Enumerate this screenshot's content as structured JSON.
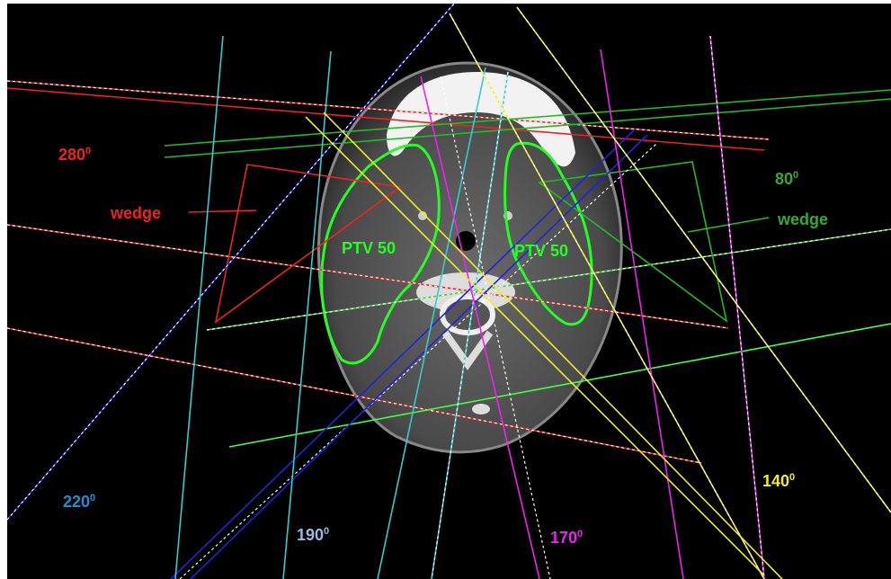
{
  "labels": [
    {
      "text": "280",
      "sup": "0"
    },
    {
      "text": "wedge"
    },
    {
      "text": "80",
      "sup": "0"
    },
    {
      "text": "wedge"
    },
    {
      "text": "PTV 50"
    },
    {
      "text": "PTV 50"
    },
    {
      "text": "220",
      "sup": "0"
    },
    {
      "text": "190",
      "sup": "0"
    },
    {
      "text": "170",
      "sup": "0"
    },
    {
      "text": "140",
      "sup": "0"
    }
  ]
}
